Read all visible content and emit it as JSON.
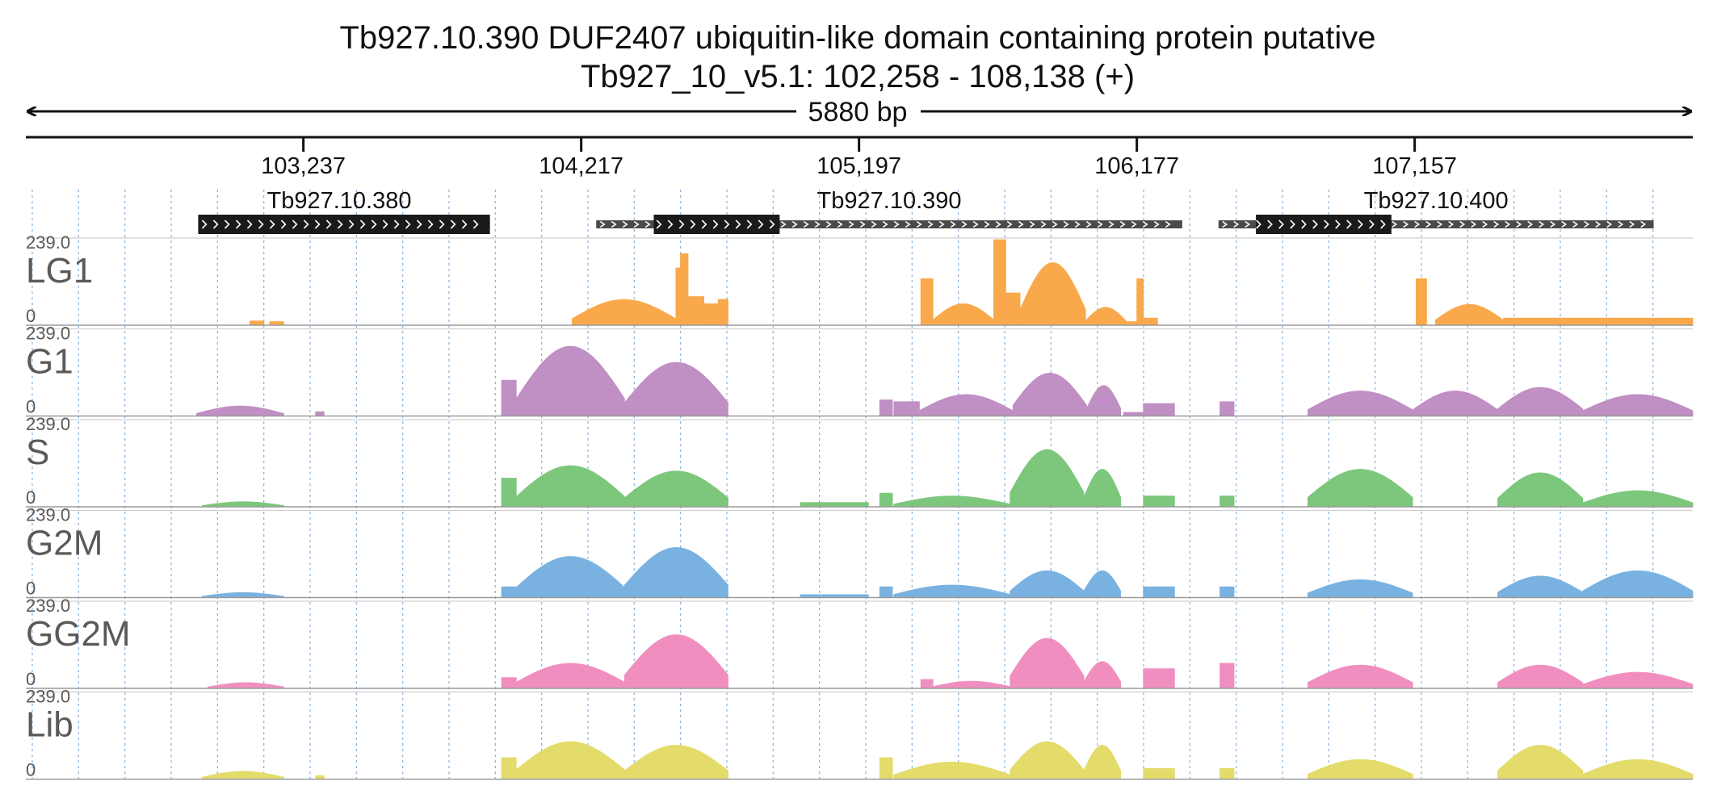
{
  "header": {
    "title": "Tb927.10.390  DUF2407 ubiquitin-like domain containing protein  putative",
    "locus": "Tb927_10_v5.1: 102,258 - 108,138 (+)",
    "span_label": "5880 bp"
  },
  "chart_data": {
    "type": "area",
    "region": {
      "chromosome": "Tb927_10_v5.1",
      "start": 102258,
      "end": 108138,
      "strand": "+"
    },
    "ruler_ticks": [
      {
        "position": 103237,
        "label": "103,237"
      },
      {
        "position": 104217,
        "label": "104,217"
      },
      {
        "position": 105197,
        "label": "105,197"
      },
      {
        "position": 106177,
        "label": "106,177"
      },
      {
        "position": 107157,
        "label": "107,157"
      }
    ],
    "genes": [
      {
        "name": "Tb927.10.380",
        "start": 102866,
        "end": 103895,
        "cds_start": 102866,
        "cds_end": 103895
      },
      {
        "name": "Tb927.10.390",
        "start": 104270,
        "end": 106337,
        "cds_start": 104473,
        "cds_end": 104917
      },
      {
        "name": "Tb927.10.400",
        "start": 106465,
        "end": 108000,
        "cds_start": 106597,
        "cds_end": 107075
      }
    ],
    "tracks": [
      {
        "name": "LG1",
        "color": "#f9a94b",
        "ymax_label": "239.0",
        "ymin_label": "0",
        "ylim": [
          0,
          239
        ],
        "segments": [
          {
            "start": 103048,
            "end": 103098,
            "peak": 12,
            "shape": "flat"
          },
          {
            "start": 103118,
            "end": 103168,
            "peak": 10,
            "shape": "flat"
          },
          {
            "start": 104185,
            "end": 104551,
            "peak": 72,
            "shape": "arch"
          },
          {
            "start": 104551,
            "end": 104567,
            "peak": 160,
            "shape": "flat"
          },
          {
            "start": 104567,
            "end": 104594,
            "peak": 200,
            "shape": "flat"
          },
          {
            "start": 104594,
            "end": 104650,
            "peak": 80,
            "shape": "flat"
          },
          {
            "start": 104650,
            "end": 104700,
            "peak": 60,
            "shape": "flat"
          },
          {
            "start": 104700,
            "end": 104735,
            "peak": 72,
            "shape": "flat"
          },
          {
            "start": 105415,
            "end": 105458,
            "peak": 130,
            "shape": "flat"
          },
          {
            "start": 105458,
            "end": 105672,
            "peak": 60,
            "shape": "arch"
          },
          {
            "start": 105672,
            "end": 105715,
            "peak": 239,
            "shape": "flat"
          },
          {
            "start": 105715,
            "end": 105765,
            "peak": 90,
            "shape": "flat"
          },
          {
            "start": 105765,
            "end": 105996,
            "peak": 175,
            "shape": "arch"
          },
          {
            "start": 105996,
            "end": 106138,
            "peak": 50,
            "shape": "arch"
          },
          {
            "start": 106138,
            "end": 106177,
            "peak": 10,
            "shape": "flat"
          },
          {
            "start": 106177,
            "end": 106200,
            "peak": 130,
            "shape": "flat"
          },
          {
            "start": 106200,
            "end": 106250,
            "peak": 20,
            "shape": "flat"
          },
          {
            "start": 107162,
            "end": 107199,
            "peak": 130,
            "shape": "flat"
          },
          {
            "start": 107230,
            "end": 107470,
            "peak": 58,
            "shape": "arch"
          },
          {
            "start": 107470,
            "end": 108138,
            "peak": 20,
            "shape": "flat"
          }
        ]
      },
      {
        "name": "G1",
        "color": "#c08fc3",
        "ymax_label": "239.0",
        "ymin_label": "0",
        "ylim": [
          0,
          239
        ],
        "segments": [
          {
            "start": 102860,
            "end": 103168,
            "peak": 28,
            "shape": "arch"
          },
          {
            "start": 103280,
            "end": 103310,
            "peak": 12,
            "shape": "flat"
          },
          {
            "start": 103936,
            "end": 103988,
            "peak": 100,
            "shape": "flat"
          },
          {
            "start": 103988,
            "end": 104370,
            "peak": 195,
            "shape": "arch"
          },
          {
            "start": 104370,
            "end": 104735,
            "peak": 150,
            "shape": "arch"
          },
          {
            "start": 105270,
            "end": 105315,
            "peak": 45,
            "shape": "flat"
          },
          {
            "start": 105320,
            "end": 105410,
            "peak": 40,
            "shape": "flat"
          },
          {
            "start": 105410,
            "end": 105740,
            "peak": 60,
            "shape": "arch"
          },
          {
            "start": 105740,
            "end": 106000,
            "peak": 120,
            "shape": "arch"
          },
          {
            "start": 106000,
            "end": 106120,
            "peak": 85,
            "shape": "arch"
          },
          {
            "start": 106130,
            "end": 106200,
            "peak": 10,
            "shape": "flat"
          },
          {
            "start": 106200,
            "end": 106310,
            "peak": 35,
            "shape": "flat"
          },
          {
            "start": 106470,
            "end": 106520,
            "peak": 40,
            "shape": "flat"
          },
          {
            "start": 106780,
            "end": 107150,
            "peak": 70,
            "shape": "arch"
          },
          {
            "start": 107150,
            "end": 107450,
            "peak": 70,
            "shape": "arch"
          },
          {
            "start": 107450,
            "end": 107750,
            "peak": 80,
            "shape": "arch"
          },
          {
            "start": 107750,
            "end": 108138,
            "peak": 60,
            "shape": "arch"
          }
        ]
      },
      {
        "name": "S",
        "color": "#7cc77c",
        "ymax_label": "239.0",
        "ymin_label": "0",
        "ylim": [
          0,
          239
        ],
        "segments": [
          {
            "start": 102880,
            "end": 103168,
            "peak": 14,
            "shape": "arch"
          },
          {
            "start": 103936,
            "end": 103988,
            "peak": 80,
            "shape": "flat"
          },
          {
            "start": 103988,
            "end": 104370,
            "peak": 115,
            "shape": "arch"
          },
          {
            "start": 104370,
            "end": 104735,
            "peak": 100,
            "shape": "arch"
          },
          {
            "start": 104990,
            "end": 105230,
            "peak": 12,
            "shape": "flat"
          },
          {
            "start": 105270,
            "end": 105315,
            "peak": 38,
            "shape": "flat"
          },
          {
            "start": 105320,
            "end": 105730,
            "peak": 30,
            "shape": "arch"
          },
          {
            "start": 105730,
            "end": 105990,
            "peak": 160,
            "shape": "arch"
          },
          {
            "start": 105990,
            "end": 106120,
            "peak": 105,
            "shape": "arch"
          },
          {
            "start": 106200,
            "end": 106310,
            "peak": 30,
            "shape": "flat"
          },
          {
            "start": 106470,
            "end": 106520,
            "peak": 30,
            "shape": "flat"
          },
          {
            "start": 106780,
            "end": 107150,
            "peak": 105,
            "shape": "arch"
          },
          {
            "start": 107450,
            "end": 107750,
            "peak": 95,
            "shape": "arch"
          },
          {
            "start": 107750,
            "end": 108138,
            "peak": 45,
            "shape": "arch"
          }
        ]
      },
      {
        "name": "G2M",
        "color": "#79b2e0",
        "ymax_label": "239.0",
        "ymin_label": "0",
        "ylim": [
          0,
          239
        ],
        "segments": [
          {
            "start": 102880,
            "end": 103168,
            "peak": 14,
            "shape": "arch"
          },
          {
            "start": 103936,
            "end": 103988,
            "peak": 30,
            "shape": "flat"
          },
          {
            "start": 103988,
            "end": 104370,
            "peak": 115,
            "shape": "arch"
          },
          {
            "start": 104370,
            "end": 104735,
            "peak": 140,
            "shape": "arch"
          },
          {
            "start": 104990,
            "end": 105230,
            "peak": 8,
            "shape": "flat"
          },
          {
            "start": 105270,
            "end": 105315,
            "peak": 30,
            "shape": "flat"
          },
          {
            "start": 105320,
            "end": 105730,
            "peak": 35,
            "shape": "arch"
          },
          {
            "start": 105730,
            "end": 105990,
            "peak": 75,
            "shape": "arch"
          },
          {
            "start": 105990,
            "end": 106120,
            "peak": 75,
            "shape": "arch"
          },
          {
            "start": 106200,
            "end": 106310,
            "peak": 30,
            "shape": "flat"
          },
          {
            "start": 106470,
            "end": 106520,
            "peak": 30,
            "shape": "flat"
          },
          {
            "start": 106780,
            "end": 107150,
            "peak": 50,
            "shape": "arch"
          },
          {
            "start": 107450,
            "end": 107750,
            "peak": 60,
            "shape": "arch"
          },
          {
            "start": 107750,
            "end": 108138,
            "peak": 75,
            "shape": "arch"
          }
        ]
      },
      {
        "name": "GG2M",
        "color": "#f08fbf",
        "ymax_label": "239.0",
        "ymin_label": "0",
        "ylim": [
          0,
          239
        ],
        "segments": [
          {
            "start": 102900,
            "end": 103168,
            "peak": 16,
            "shape": "arch"
          },
          {
            "start": 103936,
            "end": 103988,
            "peak": 30,
            "shape": "flat"
          },
          {
            "start": 103988,
            "end": 104370,
            "peak": 70,
            "shape": "arch"
          },
          {
            "start": 104370,
            "end": 104735,
            "peak": 150,
            "shape": "arch"
          },
          {
            "start": 105415,
            "end": 105458,
            "peak": 25,
            "shape": "flat"
          },
          {
            "start": 105458,
            "end": 105730,
            "peak": 20,
            "shape": "arch"
          },
          {
            "start": 105730,
            "end": 105990,
            "peak": 140,
            "shape": "arch"
          },
          {
            "start": 105990,
            "end": 106120,
            "peak": 75,
            "shape": "arch"
          },
          {
            "start": 106200,
            "end": 106310,
            "peak": 55,
            "shape": "flat"
          },
          {
            "start": 106470,
            "end": 106520,
            "peak": 70,
            "shape": "flat"
          },
          {
            "start": 106780,
            "end": 107150,
            "peak": 65,
            "shape": "arch"
          },
          {
            "start": 107450,
            "end": 107750,
            "peak": 65,
            "shape": "arch"
          },
          {
            "start": 107750,
            "end": 108138,
            "peak": 45,
            "shape": "arch"
          }
        ]
      },
      {
        "name": "Lib",
        "color": "#e3dc6b",
        "ymax_label": "239.0",
        "ymin_label": "0",
        "ylim": [
          0,
          239
        ],
        "segments": [
          {
            "start": 102880,
            "end": 103168,
            "peak": 22,
            "shape": "arch"
          },
          {
            "start": 103280,
            "end": 103310,
            "peak": 10,
            "shape": "flat"
          },
          {
            "start": 103936,
            "end": 103988,
            "peak": 60,
            "shape": "flat"
          },
          {
            "start": 103988,
            "end": 104370,
            "peak": 105,
            "shape": "arch"
          },
          {
            "start": 104370,
            "end": 104735,
            "peak": 95,
            "shape": "arch"
          },
          {
            "start": 105270,
            "end": 105315,
            "peak": 60,
            "shape": "flat"
          },
          {
            "start": 105320,
            "end": 105730,
            "peak": 48,
            "shape": "arch"
          },
          {
            "start": 105730,
            "end": 105990,
            "peak": 105,
            "shape": "arch"
          },
          {
            "start": 105990,
            "end": 106120,
            "peak": 95,
            "shape": "arch"
          },
          {
            "start": 106200,
            "end": 106310,
            "peak": 30,
            "shape": "flat"
          },
          {
            "start": 106470,
            "end": 106520,
            "peak": 30,
            "shape": "flat"
          },
          {
            "start": 106780,
            "end": 107150,
            "peak": 55,
            "shape": "arch"
          },
          {
            "start": 107450,
            "end": 107750,
            "peak": 95,
            "shape": "arch"
          },
          {
            "start": 107750,
            "end": 108138,
            "peak": 55,
            "shape": "arch"
          }
        ]
      }
    ]
  }
}
